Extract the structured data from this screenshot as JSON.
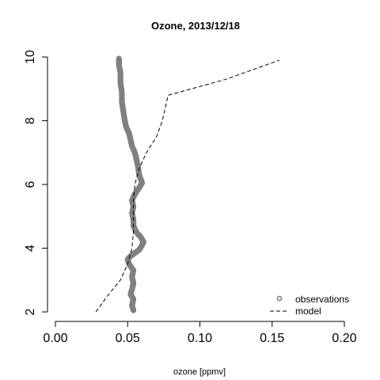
{
  "chart_data": {
    "type": "scatter",
    "title": "Ozone, 2013/12/18",
    "xlabel": "ozone [ppmv]",
    "ylabel": "",
    "xlim": [
      0.0,
      0.2
    ],
    "ylim": [
      2,
      10
    ],
    "x_ticks": [
      "0.00",
      "0.05",
      "0.10",
      "0.15",
      "0.20"
    ],
    "y_ticks": [
      "2",
      "4",
      "6",
      "8",
      "10"
    ],
    "grid": false,
    "legend_position": "bottom-right",
    "colors": {
      "observations": "#808080",
      "model": "#000000"
    },
    "series": [
      {
        "name": "observations",
        "style": "open-circles",
        "points": [
          [
            0.054,
            2.05
          ],
          [
            0.053,
            2.2
          ],
          [
            0.054,
            2.4
          ],
          [
            0.052,
            2.55
          ],
          [
            0.053,
            2.7
          ],
          [
            0.054,
            2.9
          ],
          [
            0.053,
            3.1
          ],
          [
            0.054,
            3.3
          ],
          [
            0.051,
            3.5
          ],
          [
            0.05,
            3.65
          ],
          [
            0.052,
            3.75
          ],
          [
            0.055,
            3.85
          ],
          [
            0.058,
            3.95
          ],
          [
            0.06,
            4.1
          ],
          [
            0.061,
            4.2
          ],
          [
            0.059,
            4.35
          ],
          [
            0.056,
            4.5
          ],
          [
            0.054,
            4.7
          ],
          [
            0.054,
            4.9
          ],
          [
            0.053,
            5.1
          ],
          [
            0.054,
            5.3
          ],
          [
            0.053,
            5.5
          ],
          [
            0.055,
            5.7
          ],
          [
            0.058,
            5.9
          ],
          [
            0.06,
            6.05
          ],
          [
            0.058,
            6.3
          ],
          [
            0.057,
            6.6
          ],
          [
            0.056,
            6.8
          ],
          [
            0.055,
            7.0
          ],
          [
            0.053,
            7.2
          ],
          [
            0.052,
            7.4
          ],
          [
            0.051,
            7.6
          ],
          [
            0.049,
            7.8
          ],
          [
            0.048,
            8.0
          ],
          [
            0.047,
            8.3
          ],
          [
            0.046,
            8.6
          ],
          [
            0.046,
            8.9
          ],
          [
            0.045,
            9.2
          ],
          [
            0.045,
            9.5
          ],
          [
            0.044,
            9.75
          ],
          [
            0.044,
            9.95
          ]
        ]
      },
      {
        "name": "model",
        "style": "dashed-line",
        "points": [
          [
            0.028,
            2.0
          ],
          [
            0.036,
            2.5
          ],
          [
            0.045,
            3.0
          ],
          [
            0.05,
            3.5
          ],
          [
            0.053,
            4.0
          ],
          [
            0.054,
            4.5
          ],
          [
            0.054,
            5.0
          ],
          [
            0.054,
            5.5
          ],
          [
            0.055,
            6.0
          ],
          [
            0.058,
            6.5
          ],
          [
            0.063,
            7.0
          ],
          [
            0.07,
            7.5
          ],
          [
            0.074,
            8.0
          ],
          [
            0.078,
            8.8
          ],
          [
            0.118,
            9.3
          ],
          [
            0.155,
            9.9
          ]
        ]
      }
    ]
  }
}
